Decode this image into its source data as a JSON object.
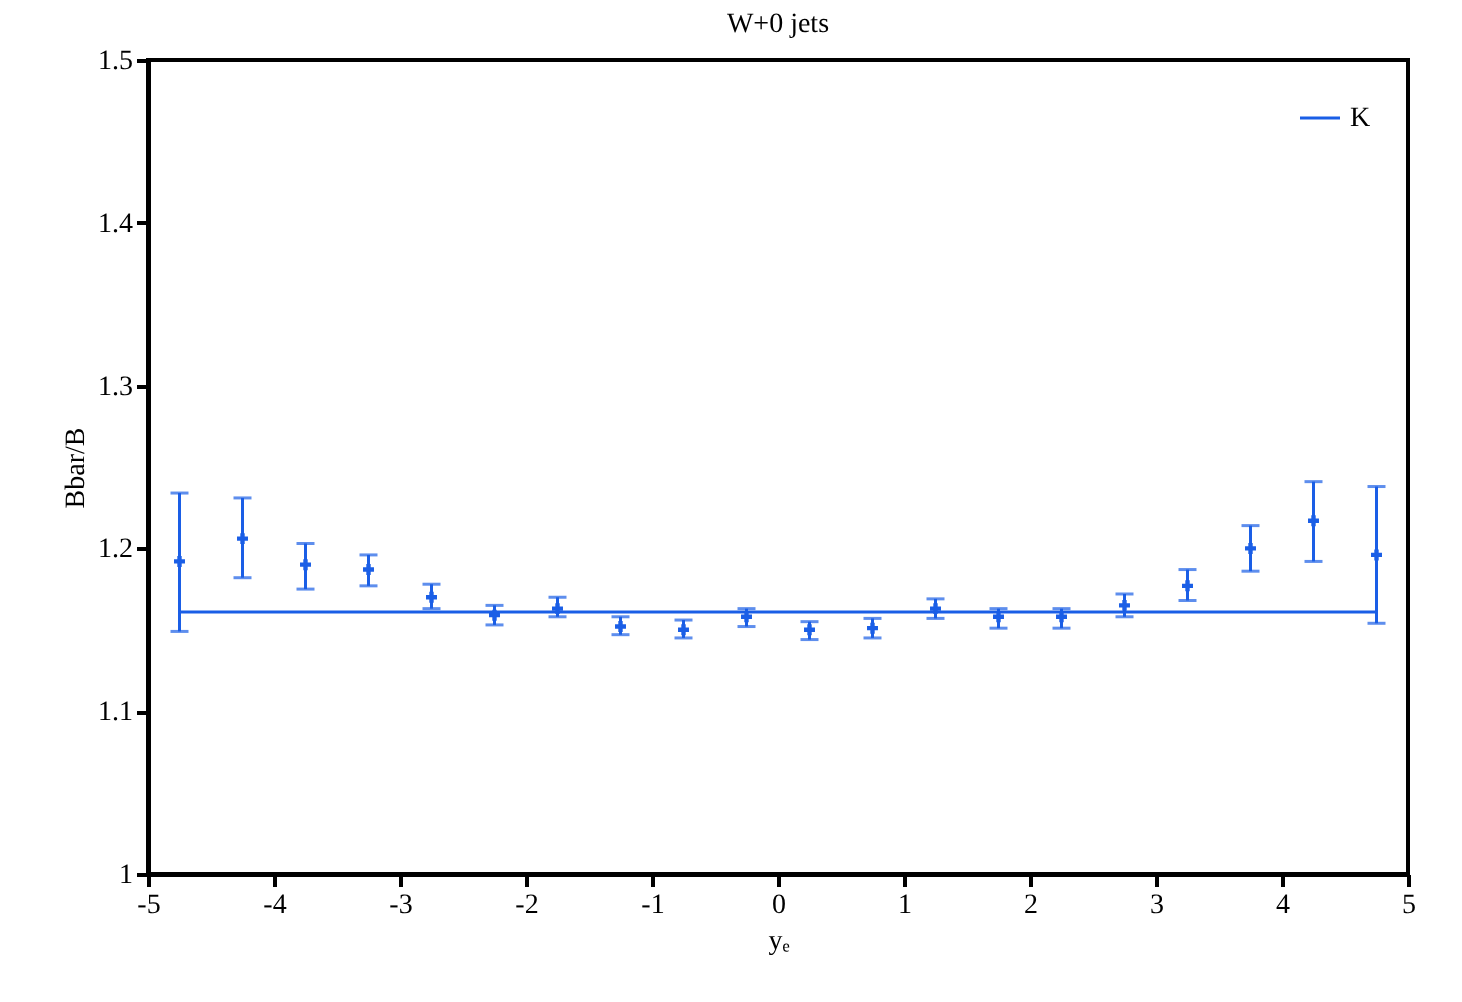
{
  "chart_data": {
    "type": "scatter",
    "title": "W+0 jets",
    "xlabel": "yₑ",
    "ylabel": "Bbar/B",
    "xlim": [
      -5,
      5
    ],
    "xticks": [
      -5,
      -4,
      -3,
      -2,
      -1,
      0,
      1,
      2,
      3,
      4,
      5
    ],
    "ylim": [
      1,
      1.5
    ],
    "yticks": [
      1,
      1.1,
      1.2,
      1.3,
      1.4,
      1.5
    ],
    "grid": false,
    "legend": "top right",
    "series": [
      {
        "color": "#1a5ee6",
        "marker": "cross",
        "x": [
          -4.75,
          -4.25,
          -3.75,
          -3.25,
          -2.75,
          -2.25,
          -1.75,
          -1.25,
          -0.75,
          -0.25,
          0.25,
          0.75,
          1.25,
          1.75,
          2.25,
          2.75,
          3.25,
          3.75,
          4.25,
          4.75
        ],
        "values": [
          1.192,
          1.206,
          1.19,
          1.187,
          1.17,
          1.159,
          1.163,
          1.152,
          1.15,
          1.158,
          1.15,
          1.151,
          1.163,
          1.158,
          1.158,
          1.165,
          1.177,
          1.2,
          1.217,
          1.196
        ],
        "errors": [
          [
            1.149,
            1.234
          ],
          [
            1.182,
            1.231
          ],
          [
            1.175,
            1.203
          ],
          [
            1.177,
            1.196
          ],
          [
            1.163,
            1.178
          ],
          [
            1.153,
            1.165
          ],
          [
            1.158,
            1.17
          ],
          [
            1.147,
            1.158
          ],
          [
            1.145,
            1.156
          ],
          [
            1.152,
            1.163
          ],
          [
            1.144,
            1.155
          ],
          [
            1.145,
            1.157
          ],
          [
            1.157,
            1.169
          ],
          [
            1.151,
            1.163
          ],
          [
            1.151,
            1.163
          ],
          [
            1.158,
            1.172
          ],
          [
            1.168,
            1.187
          ],
          [
            1.186,
            1.214
          ],
          [
            1.192,
            1.241
          ],
          [
            1.154,
            1.238
          ]
        ]
      },
      {
        "type": "line",
        "name": "K",
        "color": "#1a5ee6",
        "line_style": "solid",
        "x": [
          -4.75,
          4.75
        ],
        "values": [
          1.161,
          1.161
        ]
      }
    ]
  }
}
